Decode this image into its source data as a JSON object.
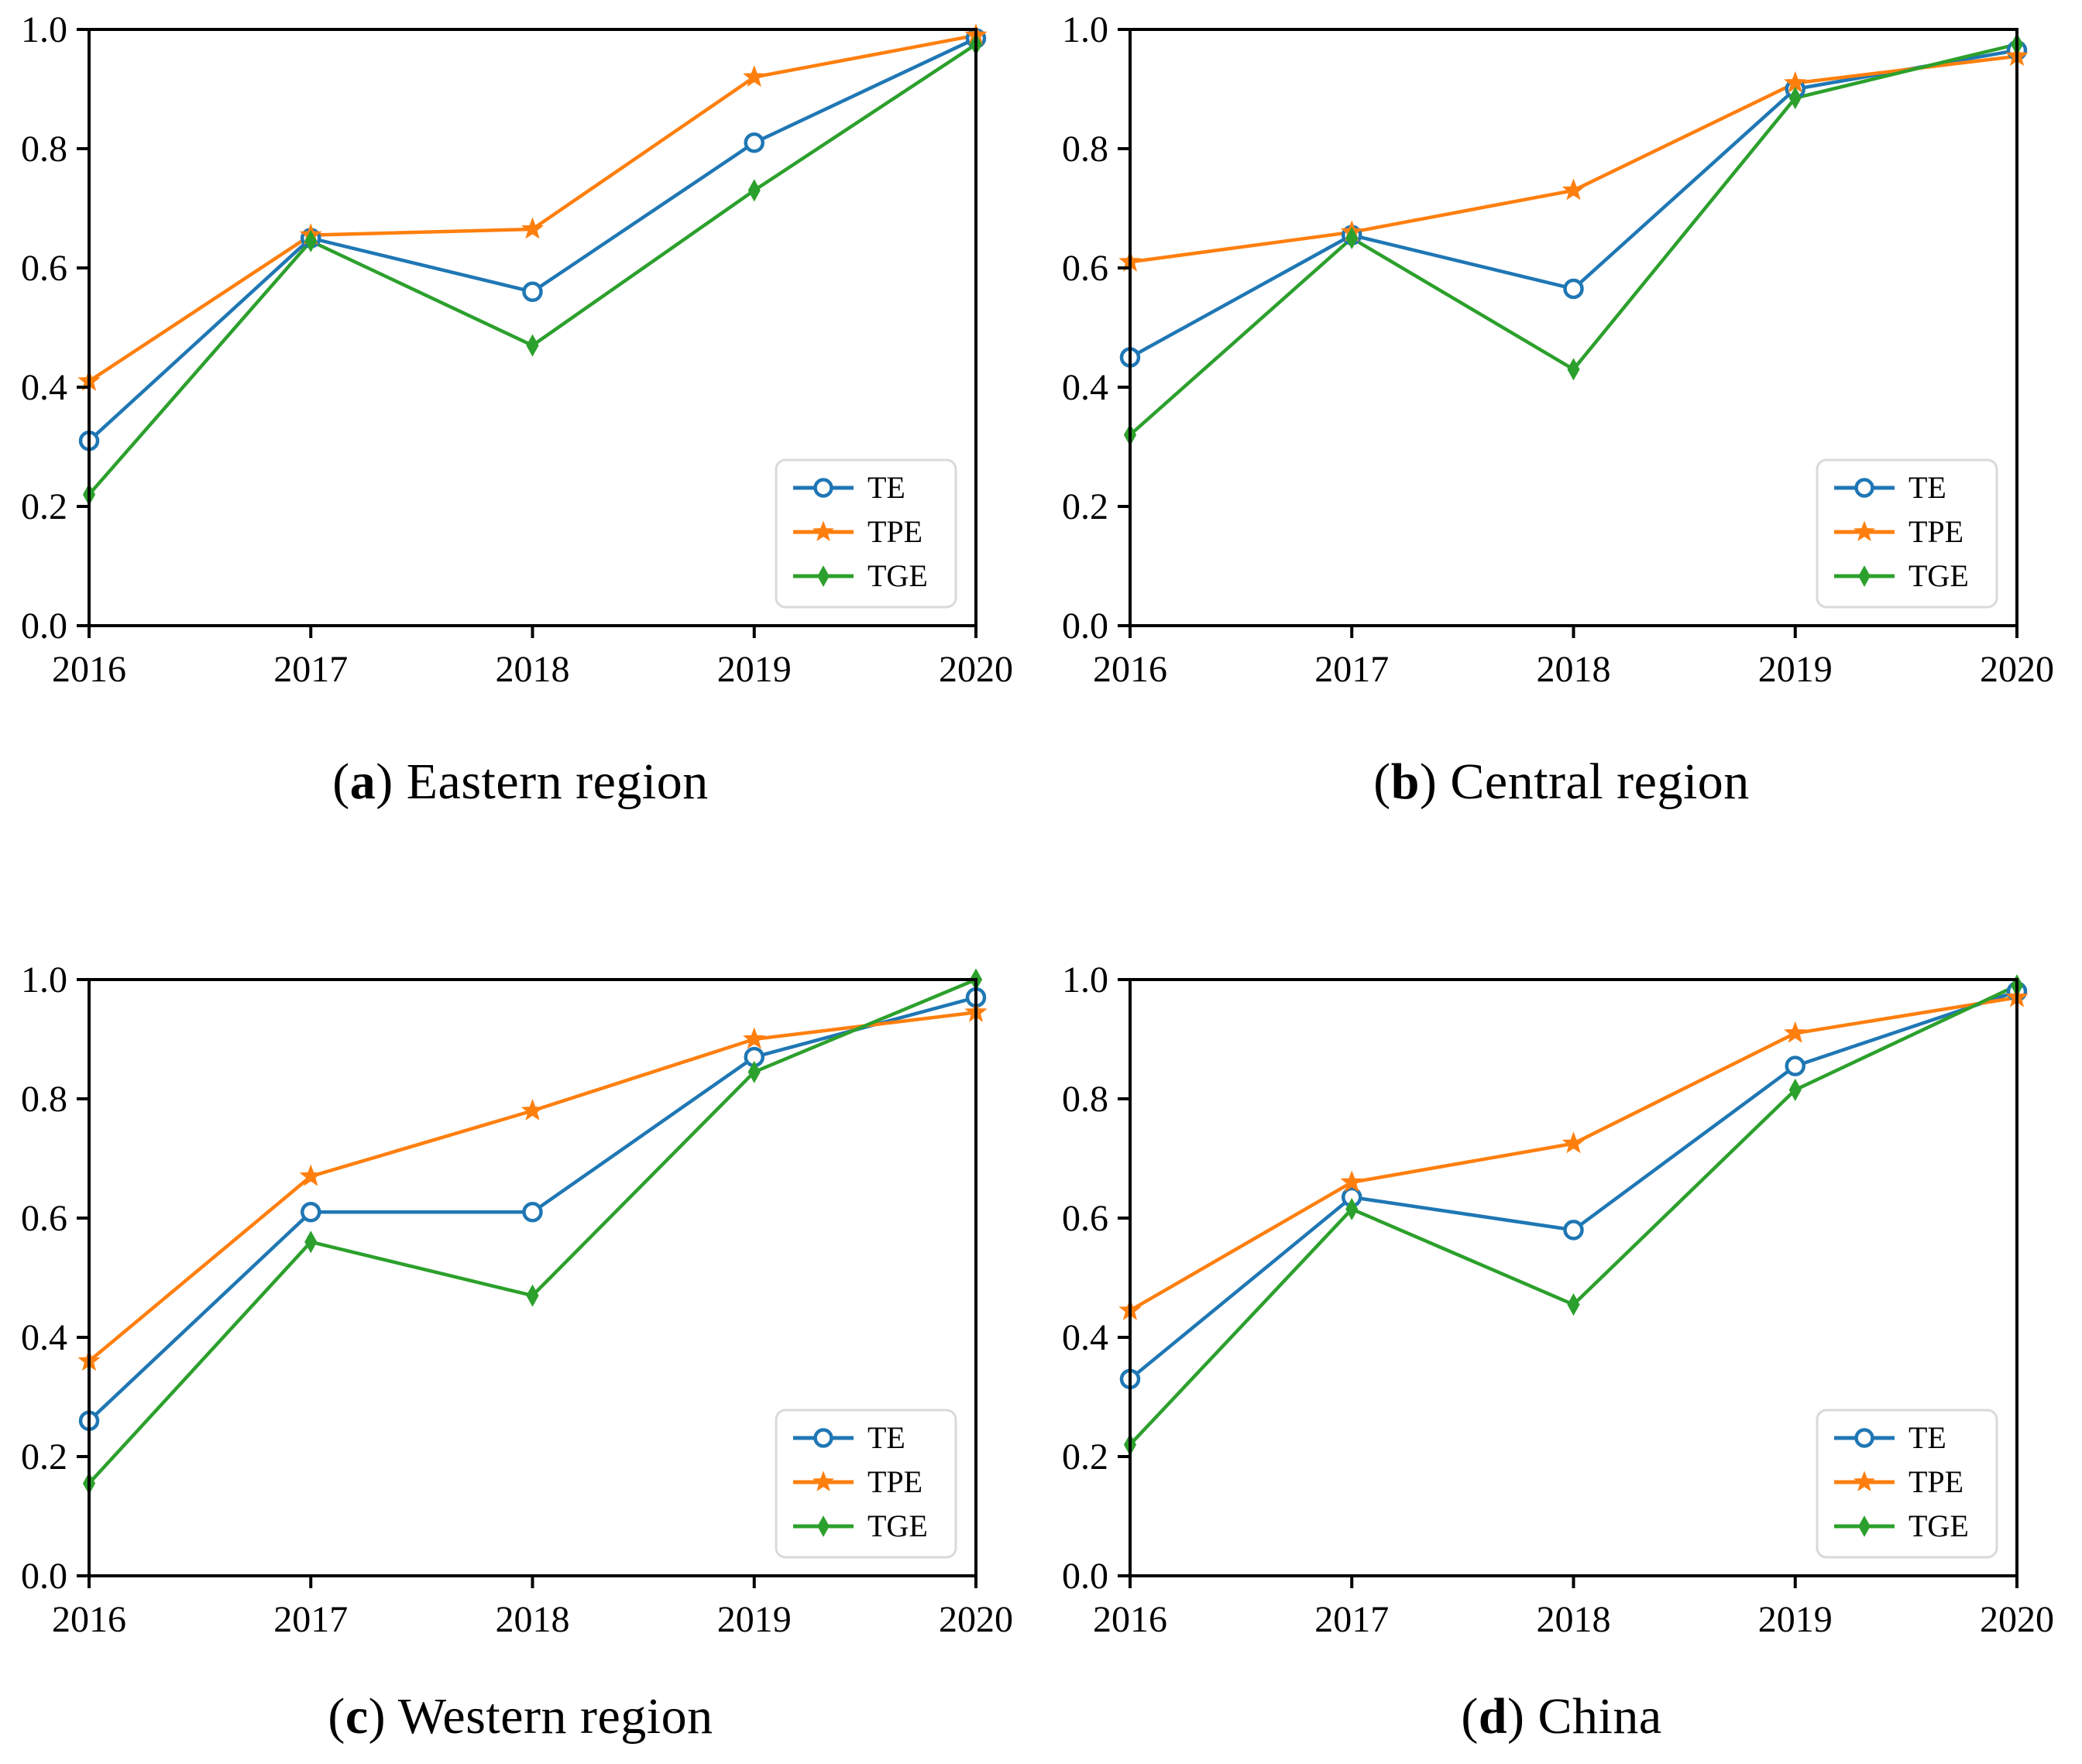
{
  "figure": {
    "background": "#ffffff",
    "text_color": "#000000",
    "spine_color": "#000000",
    "legend_border_color": "#d9d9d9"
  },
  "palette": {
    "TE": "#1f77b4",
    "TPE": "#ff7f0e",
    "TGE": "#2ca02c"
  },
  "chart_data": [
    {
      "type": "line",
      "title": "(a) Eastern region",
      "caption": {
        "open": "(",
        "letter": "a",
        "close": ")",
        "text": "Eastern region"
      },
      "categories": [
        "2016",
        "2017",
        "2018",
        "2019",
        "2020"
      ],
      "y_ticks": [
        "0.0",
        "0.2",
        "0.4",
        "0.6",
        "0.8",
        "1.0"
      ],
      "ylim": [
        0.0,
        1.0
      ],
      "grid": false,
      "legend_position": "lower right",
      "series": [
        {
          "name": "TE",
          "color": "#1f77b4",
          "marker": "circle-open",
          "values": [
            0.31,
            0.65,
            0.56,
            0.81,
            0.985
          ]
        },
        {
          "name": "TPE",
          "color": "#ff7f0e",
          "marker": "star",
          "values": [
            0.41,
            0.655,
            0.665,
            0.92,
            0.99
          ]
        },
        {
          "name": "TGE",
          "color": "#2ca02c",
          "marker": "thin-diamond",
          "values": [
            0.22,
            0.645,
            0.47,
            0.73,
            0.975
          ]
        }
      ]
    },
    {
      "type": "line",
      "title": "(b) Central region",
      "caption": {
        "open": "(",
        "letter": "b",
        "close": ")",
        "text": "Central region"
      },
      "categories": [
        "2016",
        "2017",
        "2018",
        "2019",
        "2020"
      ],
      "y_ticks": [
        "0.0",
        "0.2",
        "0.4",
        "0.6",
        "0.8",
        "1.0"
      ],
      "ylim": [
        0.0,
        1.0
      ],
      "grid": false,
      "legend_position": "lower right",
      "series": [
        {
          "name": "TE",
          "color": "#1f77b4",
          "marker": "circle-open",
          "values": [
            0.45,
            0.655,
            0.565,
            0.9,
            0.965
          ]
        },
        {
          "name": "TPE",
          "color": "#ff7f0e",
          "marker": "star",
          "values": [
            0.61,
            0.66,
            0.73,
            0.91,
            0.955
          ]
        },
        {
          "name": "TGE",
          "color": "#2ca02c",
          "marker": "thin-diamond",
          "values": [
            0.32,
            0.65,
            0.43,
            0.885,
            0.975
          ]
        }
      ]
    },
    {
      "type": "line",
      "title": "(c) Western region",
      "caption": {
        "open": "(",
        "letter": "c",
        "close": ")",
        "text": "Western region"
      },
      "categories": [
        "2016",
        "2017",
        "2018",
        "2019",
        "2020"
      ],
      "y_ticks": [
        "0.0",
        "0.2",
        "0.4",
        "0.6",
        "0.8",
        "1.0"
      ],
      "ylim": [
        0.0,
        1.0
      ],
      "grid": false,
      "legend_position": "lower right",
      "series": [
        {
          "name": "TE",
          "color": "#1f77b4",
          "marker": "circle-open",
          "values": [
            0.26,
            0.61,
            0.61,
            0.87,
            0.97
          ]
        },
        {
          "name": "TPE",
          "color": "#ff7f0e",
          "marker": "star",
          "values": [
            0.36,
            0.67,
            0.78,
            0.9,
            0.945
          ]
        },
        {
          "name": "TGE",
          "color": "#2ca02c",
          "marker": "thin-diamond",
          "values": [
            0.155,
            0.56,
            0.47,
            0.845,
            1.0
          ]
        }
      ]
    },
    {
      "type": "line",
      "title": "(d) China",
      "caption": {
        "open": "(",
        "letter": "d",
        "close": ")",
        "text": "China"
      },
      "categories": [
        "2016",
        "2017",
        "2018",
        "2019",
        "2020"
      ],
      "y_ticks": [
        "0.0",
        "0.2",
        "0.4",
        "0.6",
        "0.8",
        "1.0"
      ],
      "ylim": [
        0.0,
        1.0
      ],
      "grid": false,
      "legend_position": "lower right",
      "series": [
        {
          "name": "TE",
          "color": "#1f77b4",
          "marker": "circle-open",
          "values": [
            0.33,
            0.635,
            0.58,
            0.855,
            0.98
          ]
        },
        {
          "name": "TPE",
          "color": "#ff7f0e",
          "marker": "star",
          "values": [
            0.445,
            0.66,
            0.725,
            0.91,
            0.97
          ]
        },
        {
          "name": "TGE",
          "color": "#2ca02c",
          "marker": "thin-diamond",
          "values": [
            0.22,
            0.615,
            0.455,
            0.815,
            0.99
          ]
        }
      ]
    }
  ]
}
